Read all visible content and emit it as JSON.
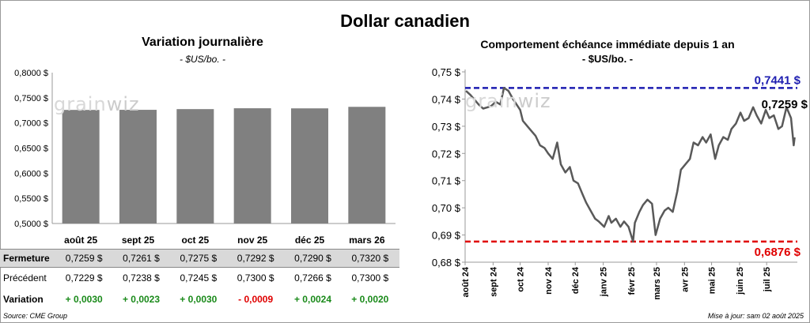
{
  "page": {
    "title": "Dollar canadien",
    "source": "Source: CME Group",
    "updated": "Mise à jour: sam 02 août 2025",
    "watermark": "grainwiz"
  },
  "chart_data": [
    {
      "type": "bar",
      "title": "Variation  journalière",
      "subtitle": "- $US/bo. -",
      "categories": [
        "août 25",
        "sept 25",
        "oct 25",
        "nov 25",
        "déc 25",
        "mars 26"
      ],
      "values": [
        0.7259,
        0.7261,
        0.7275,
        0.7292,
        0.729,
        0.732
      ],
      "ylim": [
        0.5,
        0.8
      ],
      "yticks": [
        "0,5000 $",
        "0,5500 $",
        "0,6000 $",
        "0,6500 $",
        "0,7000 $",
        "0,7500 $",
        "0,8000 $"
      ],
      "color": "#808080",
      "table": {
        "rows": [
          {
            "label": "Fermeture",
            "values": [
              "0,7259  $",
              "0,7261  $",
              "0,7275  $",
              "0,7292  $",
              "0,7290  $",
              "0,7320  $"
            ]
          },
          {
            "label": "Précédent",
            "values": [
              "0,7229  $",
              "0,7238  $",
              "0,7245  $",
              "0,7300  $",
              "0,7266  $",
              "0,7300  $"
            ]
          },
          {
            "label": "Variation",
            "values": [
              "+ 0,0030",
              "+ 0,0023",
              "+ 0,0030",
              "- 0,0009",
              "+ 0,0024",
              "+ 0,0020"
            ]
          }
        ]
      }
    },
    {
      "type": "line",
      "title": "Comportement échéance immédiate depuis 1 an",
      "subtitle": "- $US/bo. -",
      "ylim": [
        0.68,
        0.75
      ],
      "yticks": [
        "0,68 $",
        "0,69 $",
        "0,70 $",
        "0,71 $",
        "0,72 $",
        "0,73 $",
        "0,74 $",
        "0,75 $"
      ],
      "xticks": [
        "août 24",
        "sept 24",
        "oct 24",
        "nov 24",
        "déc 24",
        "janv 25",
        "févr 25",
        "mars 25",
        "avr 25",
        "mai 25",
        "juin 25",
        "juil 25"
      ],
      "color": "#595959",
      "max": {
        "value": 0.7441,
        "label": "0,7441 $",
        "color": "#1c1cb0"
      },
      "min": {
        "value": 0.6876,
        "label": "0,6876 $",
        "color": "#e00000"
      },
      "last_label": "0,7259 $",
      "series": [
        {
          "x": [
            "2024-08-02",
            "2024-08-07",
            "2024-08-12",
            "2024-08-16",
            "2024-08-21",
            "2024-08-26",
            "2024-08-30",
            "2024-09-04",
            "2024-09-09",
            "2024-09-13",
            "2024-09-18",
            "2024-09-23",
            "2024-09-26",
            "2024-10-01",
            "2024-10-04",
            "2024-10-09",
            "2024-10-14",
            "2024-10-18",
            "2024-10-23",
            "2024-10-28",
            "2024-11-01",
            "2024-11-06",
            "2024-11-11",
            "2024-11-15",
            "2024-11-20",
            "2024-11-25",
            "2024-11-29",
            "2024-12-04",
            "2024-12-09",
            "2024-12-13",
            "2024-12-18",
            "2024-12-23",
            "2024-12-27",
            "2025-01-02",
            "2025-01-07",
            "2025-01-10",
            "2025-01-15",
            "2025-01-20",
            "2025-01-24",
            "2025-01-29",
            "2025-02-03",
            "2025-02-05",
            "2025-02-10",
            "2025-02-14",
            "2025-02-19",
            "2025-02-24",
            "2025-02-28",
            "2025-03-05",
            "2025-03-10",
            "2025-03-14",
            "2025-03-19",
            "2025-03-24",
            "2025-03-28",
            "2025-04-02",
            "2025-04-07",
            "2025-04-11",
            "2025-04-16",
            "2025-04-21",
            "2025-04-25",
            "2025-04-30",
            "2025-05-05",
            "2025-05-09",
            "2025-05-14",
            "2025-05-19",
            "2025-05-23",
            "2025-05-28",
            "2025-06-02",
            "2025-06-06",
            "2025-06-11",
            "2025-06-16",
            "2025-06-20",
            "2025-06-25",
            "2025-06-30",
            "2025-07-04",
            "2025-07-09",
            "2025-07-14",
            "2025-07-18",
            "2025-07-23",
            "2025-07-28",
            "2025-07-31",
            "2025-08-01"
          ],
          "y": [
            0.743,
            0.7415,
            0.7395,
            0.738,
            0.7365,
            0.737,
            0.7375,
            0.739,
            0.738,
            0.7441,
            0.743,
            0.74,
            0.7385,
            0.736,
            0.732,
            0.73,
            0.728,
            0.7265,
            0.723,
            0.722,
            0.72,
            0.718,
            0.724,
            0.716,
            0.713,
            0.715,
            0.71,
            0.709,
            0.705,
            0.702,
            0.699,
            0.696,
            0.695,
            0.693,
            0.697,
            0.6945,
            0.696,
            0.693,
            0.695,
            0.693,
            0.6876,
            0.6945,
            0.6985,
            0.701,
            0.703,
            0.7015,
            0.69,
            0.696,
            0.699,
            0.7,
            0.6985,
            0.706,
            0.714,
            0.716,
            0.718,
            0.724,
            0.723,
            0.726,
            0.724,
            0.727,
            0.718,
            0.723,
            0.726,
            0.725,
            0.729,
            0.731,
            0.735,
            0.732,
            0.733,
            0.737,
            0.734,
            0.731,
            0.736,
            0.733,
            0.734,
            0.729,
            0.73,
            0.737,
            0.733,
            0.723,
            0.7259
          ]
        }
      ]
    }
  ]
}
